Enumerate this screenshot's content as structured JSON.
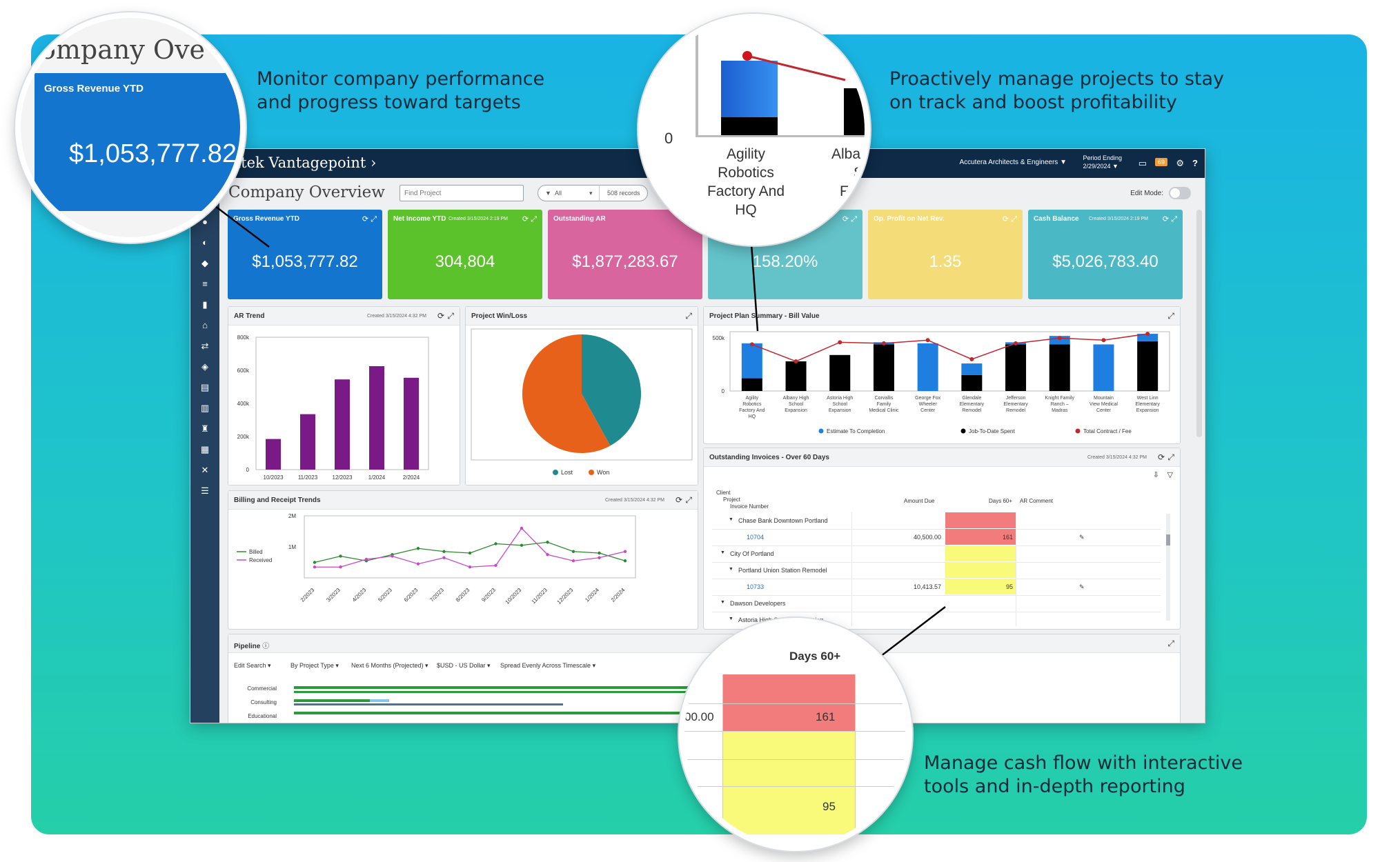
{
  "headlines": {
    "top_left": [
      "Monitor company performance",
      "and progress toward targets"
    ],
    "top_right": [
      "Proactively manage projects to stay",
      "on track and boost profitability"
    ],
    "bottom_right": [
      "Manage cash flow with interactive",
      "tools and in-depth reporting"
    ]
  },
  "topbar": {
    "brand": "eltek Vantagepoint",
    "brand_chevron": "›",
    "company": "Accutera Architects & Engineers",
    "period_label": "Period Ending",
    "period_date": "2/29/2024",
    "badge": "69",
    "chat_icon": "chat-icon",
    "settings_icon": "gear-icon",
    "help": "?"
  },
  "page": {
    "title": "Company Overview",
    "search_placeholder": "Find Project",
    "filter_value": "All",
    "record_count": "508 records",
    "edit_mode_label": "Edit Mode:"
  },
  "kpis": [
    {
      "label": "Gross Revenue YTD",
      "created": "",
      "value": "$1,053,777.82",
      "color": "#1475cf"
    },
    {
      "label": "Net Income YTD",
      "created": "Created 3/15/2024 2:19 PM",
      "value": "304,804",
      "color": "#5cc22b"
    },
    {
      "label": "Outstanding AR",
      "created": "",
      "value": "$1,877,283.67",
      "color": "#d9659f"
    },
    {
      "label": "",
      "created": "",
      "value": "158.20%",
      "color": "#63c3c9"
    },
    {
      "label": "Op. Profit on Net Rev.",
      "created": "",
      "value": "1.35",
      "color": "#f4dc78"
    },
    {
      "label": "Cash Balance",
      "created": "Created 3/15/2024 2:19 PM",
      "value": "$5,026,783.40",
      "color": "#4bb8c5"
    }
  ],
  "panels": {
    "ar_trend": {
      "title": "AR Trend",
      "created": "Created 3/15/2024 4:32 PM"
    },
    "win_loss": {
      "title": "Project Win/Loss"
    },
    "plan_summary": {
      "title": "Project Plan Summary - Bill Value"
    },
    "billing": {
      "title": "Billing and Receipt Trends",
      "created": "Created 3/15/2024 4:32 PM"
    },
    "invoices": {
      "title": "Outstanding Invoices - Over 60 Days",
      "created": "Created 3/15/2024 4:32 PM"
    },
    "pipeline": {
      "title": "Pipeline"
    }
  },
  "chart_data": [
    {
      "type": "bar",
      "title": "AR Trend",
      "categories": [
        "10/2023",
        "11/2023",
        "12/2023",
        "1/2024",
        "2/2024"
      ],
      "values": [
        185000,
        335000,
        545000,
        625000,
        555000
      ],
      "yticks": [
        "0",
        "200k",
        "400k",
        "600k",
        "800k"
      ],
      "ylim": [
        0,
        800000
      ],
      "color": "#7a1a86"
    },
    {
      "type": "pie",
      "title": "Project Win/Loss",
      "series": [
        {
          "name": "Lost",
          "value": 42,
          "color": "#1f8a8f"
        },
        {
          "name": "Won",
          "value": 58,
          "color": "#e8611b"
        }
      ]
    },
    {
      "type": "bar",
      "title": "Project Plan Summary - Bill Value",
      "categories": [
        "Agility Robotics Factory And HQ",
        "Albany High School Expansion",
        "Astoria High School Expansion",
        "Corvallis Family Medical Clinic",
        "George Fox Wheeler Center",
        "Glendale Elementary Remodel",
        "Jefferson Elementary Remodel",
        "Knight Family Ranch – Madras",
        "Mountain View Medical Center",
        "West Linn Elementary Expansion"
      ],
      "category_lines": [
        [
          "Agility",
          "Robotics",
          "Factory And",
          "HQ"
        ],
        [
          "Albany High",
          "School",
          "Expansion"
        ],
        [
          "Astoria High",
          "School",
          "Expansion"
        ],
        [
          "Corvallis",
          "Family",
          "Medical Clinic"
        ],
        [
          "George Fox",
          "Wheeler",
          "Center"
        ],
        [
          "Glendale",
          "Elementary",
          "Remodel"
        ],
        [
          "Jefferson",
          "Elementary",
          "Remodel"
        ],
        [
          "Knight Family",
          "Ranch –",
          "Madras"
        ],
        [
          "Mountain",
          "View Medical",
          "Center"
        ],
        [
          "West Linn",
          "Elementary",
          "Expansion"
        ]
      ],
      "series": [
        {
          "name": "Estimate To Completion",
          "values": [
            330000,
            0,
            0,
            20000,
            450000,
            110000,
            20000,
            80000,
            440000,
            70000
          ],
          "color": "#1f7fe0"
        },
        {
          "name": "Job-To-Date Spent",
          "values": [
            120000,
            280000,
            340000,
            440000,
            0,
            150000,
            440000,
            440000,
            0,
            470000
          ],
          "color": "#000000"
        },
        {
          "name": "Total Contract / Fee",
          "values": [
            440000,
            280000,
            460000,
            450000,
            480000,
            300000,
            450000,
            500000,
            480000,
            540000
          ],
          "color": "#c0282e"
        }
      ],
      "yticks": [
        "0",
        "500k"
      ],
      "ylim": [
        0,
        560000
      ]
    },
    {
      "type": "line",
      "title": "Billing and Receipt Trends",
      "x": [
        "2/2023",
        "3/2023",
        "4/2023",
        "5/2023",
        "6/2023",
        "7/2023",
        "8/2023",
        "9/2023",
        "10/2023",
        "11/2023",
        "12/2023",
        "1/2024",
        "2/2024"
      ],
      "series": [
        {
          "name": "Billed",
          "values": [
            500000,
            700000,
            550000,
            750000,
            950000,
            850000,
            800000,
            1100000,
            1050000,
            1150000,
            850000,
            800000,
            550000
          ],
          "color": "#2a8a2e"
        },
        {
          "name": "Received",
          "values": [
            350000,
            350000,
            600000,
            700000,
            450000,
            650000,
            350000,
            400000,
            1600000,
            750000,
            550000,
            650000,
            850000
          ],
          "color": "#c848c8"
        }
      ],
      "yticks": [
        "2M",
        "1M"
      ],
      "ylim": [
        0,
        2000000
      ]
    }
  ],
  "invoices": {
    "columns": {
      "client": "Client",
      "project": "Project",
      "invoice": "Invoice Number",
      "amount": "Amount Due",
      "days": "Days 60+",
      "comment": "AR Comment"
    },
    "rows": [
      {
        "level": 1,
        "text": "Chase Bank Downtown Portland",
        "amount": "",
        "days": "",
        "highlight": "red"
      },
      {
        "level": 2,
        "text": "10704",
        "amount": "40,500.00",
        "days": "161",
        "highlight": "red",
        "link": true
      },
      {
        "level": 0,
        "text": "City Of Portland",
        "amount": "",
        "days": "",
        "highlight": "yellow"
      },
      {
        "level": 1,
        "text": "Portland Union Station Remodel",
        "amount": "",
        "days": "",
        "highlight": "yellow"
      },
      {
        "level": 2,
        "text": "10733",
        "amount": "10,413.57",
        "days": "95",
        "highlight": "yellow",
        "link": true
      },
      {
        "level": 0,
        "text": "Dawson Developers",
        "amount": "",
        "days": "",
        "highlight": ""
      },
      {
        "level": 1,
        "text": "Astoria High School Expansion",
        "amount": "",
        "days": "",
        "highlight": ""
      }
    ]
  },
  "pipeline": {
    "toolbar": [
      "Edit Search",
      "By Project Type",
      "Next 6 Months (Projected)",
      "$USD - US Dollar",
      "Spread Evenly Across Timescale"
    ],
    "rows": [
      "Commercial",
      "Consulting",
      "Educational"
    ]
  },
  "zoom_revenue": {
    "title_fragment": "ompany Ove",
    "label": "Gross Revenue YTD",
    "value": "$1,053,777.82"
  },
  "zoom_chart": {
    "zero": "0",
    "label_lines": [
      "Agility",
      "Robotics",
      "Factory And",
      "HQ"
    ],
    "next_label": [
      "Alba",
      "S",
      "F"
    ]
  },
  "zoom_days": {
    "header": "Days 60+",
    "amount_fragment": "00.00",
    "value_red": "161",
    "value_yellow": "95"
  }
}
